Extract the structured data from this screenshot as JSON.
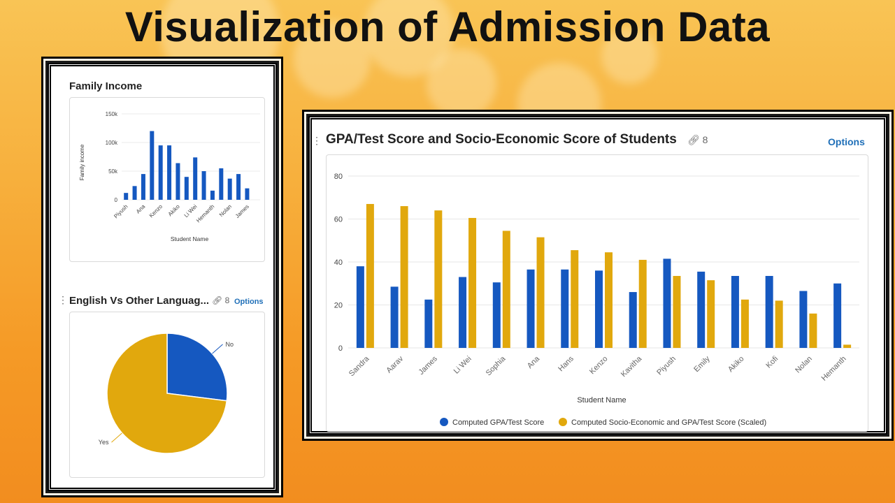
{
  "page_title": "Visualization of Admission Data",
  "colors": {
    "blue": "#1558c0",
    "gold": "#e1a80d"
  },
  "panels": {
    "income": {
      "title": "Family Income"
    },
    "language": {
      "title": "English Vs Other Languag...",
      "link_count": "8",
      "options_label": "Options",
      "link_icon": "link-icon"
    },
    "gpa": {
      "title": "GPA/Test Score and Socio-Economic Score of Students",
      "link_count": "8",
      "options_label": "Options",
      "link_icon": "link-icon"
    }
  },
  "chart_data": [
    {
      "type": "bar",
      "title": "Family Income",
      "xlabel": "Student Name",
      "ylabel": "Family income",
      "ylim": [
        0,
        150000
      ],
      "yticks": [
        0,
        50000,
        100000,
        150000
      ],
      "ytick_labels": [
        "0",
        "50k",
        "100k",
        "150k"
      ],
      "categories": [
        "Piyush",
        "",
        "Ana",
        "",
        "Kenzo",
        "",
        "Akiko",
        "",
        "Li Wei",
        "",
        "Hemanth",
        "",
        "Nolan",
        "",
        "James",
        ""
      ],
      "values": [
        12000,
        24000,
        45000,
        120000,
        95000,
        95000,
        64000,
        40000,
        74000,
        50000,
        16000,
        55000,
        37000,
        45000,
        20000,
        0
      ],
      "grid": true,
      "color": "#1558c0"
    },
    {
      "type": "pie",
      "title": "English Vs Other Languag...",
      "labels": [
        "No",
        "Yes"
      ],
      "values": [
        27,
        73
      ],
      "colors": [
        "#1558c0",
        "#e1a80d"
      ]
    },
    {
      "type": "bar",
      "title": "GPA/Test Score and Socio-Economic Score of Students",
      "xlabel": "Student Name",
      "ylabel": "",
      "ylim": [
        0,
        80
      ],
      "yticks": [
        0,
        20,
        40,
        60,
        80
      ],
      "categories": [
        "Sandra",
        "Aarav",
        "James",
        "Li Wei",
        "Sophia",
        "Ana",
        "Hans",
        "Kenzo",
        "Kavitha",
        "Piyush",
        "Emily",
        "Akiko",
        "Kofi",
        "Nolan",
        "Hemanth"
      ],
      "series": [
        {
          "name": "Computed GPA/Test Score",
          "values": [
            38,
            28.5,
            22.5,
            33,
            30.5,
            36.5,
            36.5,
            36,
            26,
            41.5,
            35.5,
            33.5,
            33.5,
            26.5,
            30
          ],
          "color": "#1558c0"
        },
        {
          "name": "Computed Socio-Economic and GPA/Test Score (Scaled)",
          "values": [
            67,
            66,
            64,
            60.5,
            54.5,
            51.5,
            45.5,
            44.5,
            41,
            33.5,
            31.5,
            22.5,
            22,
            16,
            1.5
          ],
          "color": "#e1a80d"
        }
      ],
      "grid": true,
      "legend": "bottom"
    }
  ]
}
